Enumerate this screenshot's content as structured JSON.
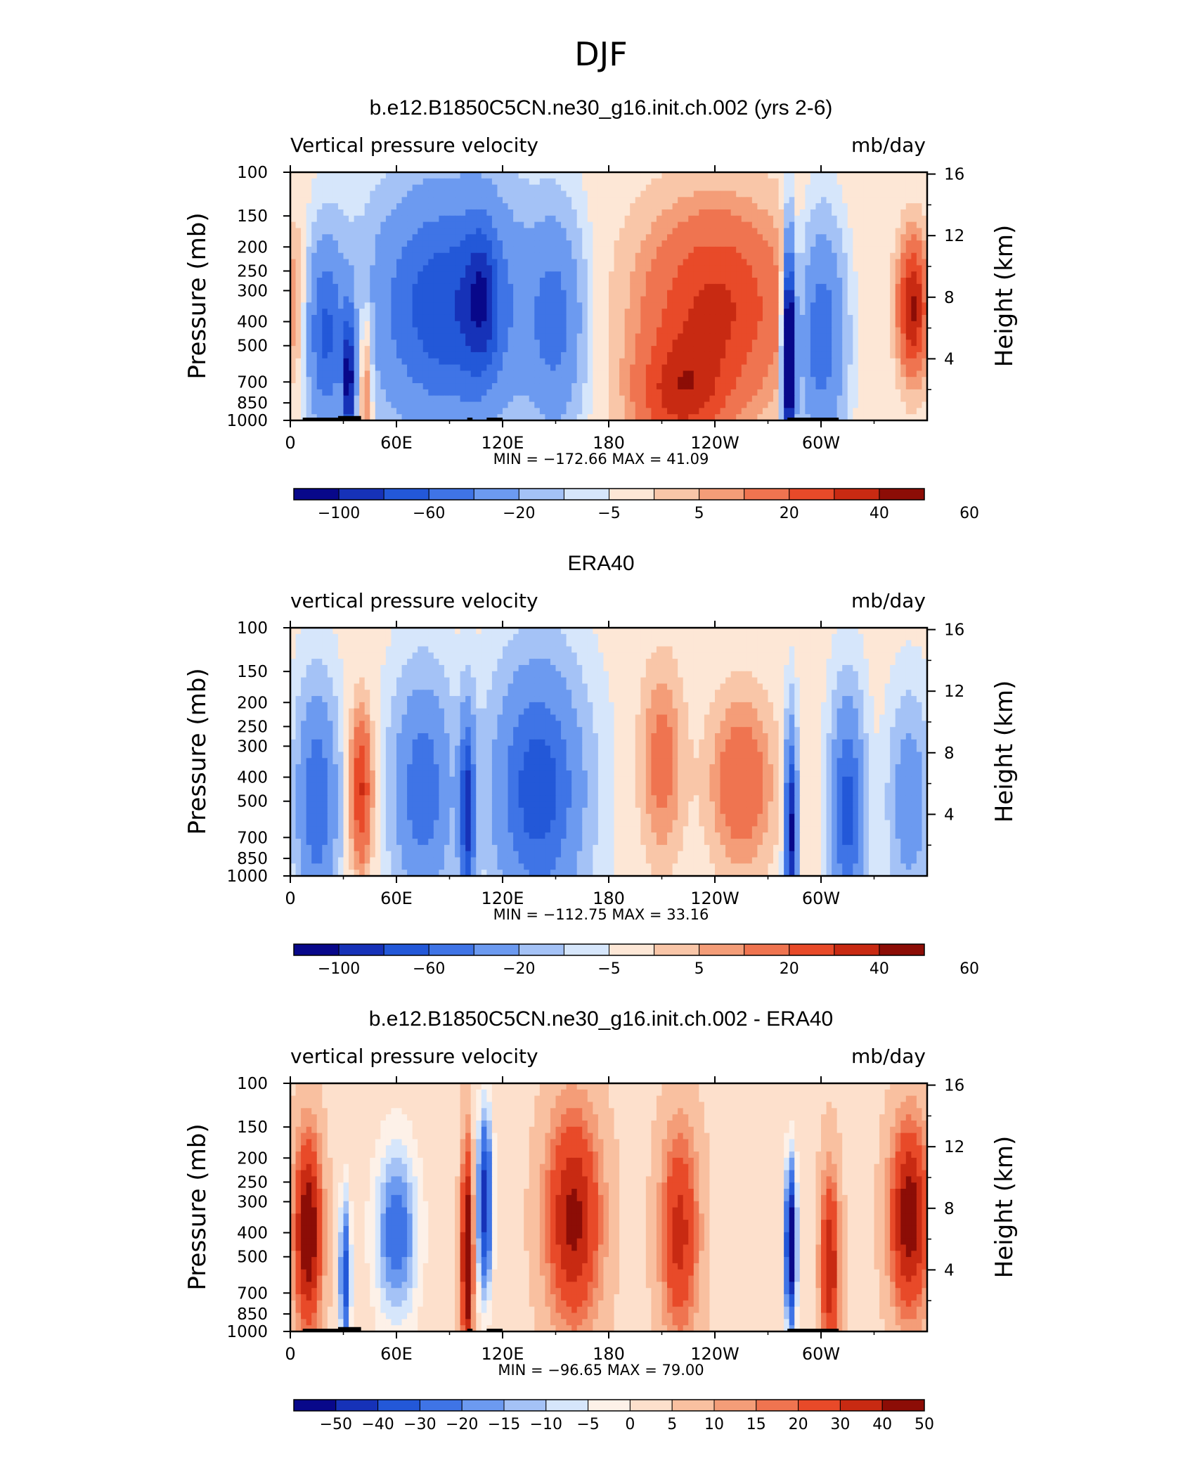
{
  "figure_title": "DJF",
  "colors": {
    "main": [
      "#08088a",
      "#1632b8",
      "#2358d8",
      "#3f74e6",
      "#6c9af0",
      "#a4c2f6",
      "#d6e6fb",
      "#fde7d6",
      "#f9c6a8",
      "#f49d78",
      "#ef7450",
      "#e84a29",
      "#c82a12",
      "#8c0d06"
    ],
    "diff": [
      "#08088a",
      "#1632b8",
      "#2358d8",
      "#3f74e6",
      "#6c9af0",
      "#a4c2f6",
      "#d6e6fb",
      "#fdf1e8",
      "#fde0cc",
      "#f9c0a0",
      "#f49d78",
      "#ef7450",
      "#e84a29",
      "#c82a12",
      "#8c0d06"
    ],
    "land": "#000000"
  },
  "chart_data": [
    {
      "type": "heatmap",
      "title": "b.e12.B1850C5CN.ne30_g16.init.ch.002 (yrs 2-6)",
      "left_label": "Vertical pressure velocity",
      "right_label": "mb/day",
      "xlabel": "",
      "ylabel": "Pressure (mb)",
      "y2label": "Height (km)",
      "x_ticks": [
        "0",
        "60E",
        "120E",
        "180",
        "120W",
        "60W"
      ],
      "x_tick_values": [
        0,
        60,
        120,
        180,
        240,
        300
      ],
      "xlim": [
        0,
        360
      ],
      "y_ticks": [
        "100",
        "150",
        "200",
        "250",
        "300",
        "400",
        "500",
        "700",
        "850",
        "1000"
      ],
      "y_tick_values": [
        100,
        150,
        200,
        250,
        300,
        400,
        500,
        700,
        850,
        1000
      ],
      "ylim": [
        1000,
        100
      ],
      "y2_ticks": [
        "16",
        "12",
        "8",
        "4"
      ],
      "y2_tick_values": [
        16,
        12,
        8,
        4
      ],
      "min_max_text": "MIN = −172.66   MAX =   41.09",
      "min": -172.66,
      "max": 41.09,
      "colorbar_labels": [
        "−100",
        "−60",
        "−20",
        "−5",
        "5",
        "20",
        "40",
        "60"
      ],
      "field_type": "model"
    },
    {
      "type": "heatmap",
      "title": "ERA40",
      "left_label": "vertical pressure velocity",
      "right_label": "mb/day",
      "xlabel": "",
      "ylabel": "Pressure (mb)",
      "y2label": "Height (km)",
      "x_ticks": [
        "0",
        "60E",
        "120E",
        "180",
        "120W",
        "60W"
      ],
      "x_tick_values": [
        0,
        60,
        120,
        180,
        240,
        300
      ],
      "xlim": [
        0,
        360
      ],
      "y_ticks": [
        "100",
        "150",
        "200",
        "250",
        "300",
        "400",
        "500",
        "700",
        "850",
        "1000"
      ],
      "y_tick_values": [
        100,
        150,
        200,
        250,
        300,
        400,
        500,
        700,
        850,
        1000
      ],
      "ylim": [
        1000,
        100
      ],
      "y2_ticks": [
        "16",
        "12",
        "8",
        "4"
      ],
      "y2_tick_values": [
        16,
        12,
        8,
        4
      ],
      "min_max_text": "MIN = −112.75   MAX =   33.16",
      "min": -112.75,
      "max": 33.16,
      "colorbar_labels": [
        "−100",
        "−60",
        "−20",
        "−5",
        "5",
        "20",
        "40",
        "60"
      ],
      "field_type": "obs"
    },
    {
      "type": "heatmap",
      "title": "b.e12.B1850C5CN.ne30_g16.init.ch.002 - ERA40",
      "left_label": "vertical pressure velocity",
      "right_label": "mb/day",
      "xlabel": "",
      "ylabel": "Pressure (mb)",
      "y2label": "Height (km)",
      "x_ticks": [
        "0",
        "60E",
        "120E",
        "180",
        "120W",
        "60W"
      ],
      "x_tick_values": [
        0,
        60,
        120,
        180,
        240,
        300
      ],
      "xlim": [
        0,
        360
      ],
      "y_ticks": [
        "100",
        "150",
        "200",
        "250",
        "300",
        "400",
        "500",
        "700",
        "850",
        "1000"
      ],
      "y_tick_values": [
        100,
        150,
        200,
        250,
        300,
        400,
        500,
        700,
        850,
        1000
      ],
      "ylim": [
        1000,
        100
      ],
      "y2_ticks": [
        "16",
        "12",
        "8",
        "4"
      ],
      "y2_tick_values": [
        16,
        12,
        8,
        4
      ],
      "min_max_text": "MIN = −96.65   MAX =   79.00",
      "min": -96.65,
      "max": 79.0,
      "colorbar_labels": [
        "−50",
        "−40",
        "−30",
        "−20",
        "−15",
        "−10",
        "−5",
        "0",
        "5",
        "10",
        "15",
        "20",
        "30",
        "40",
        "50"
      ],
      "field_type": "diff"
    }
  ]
}
